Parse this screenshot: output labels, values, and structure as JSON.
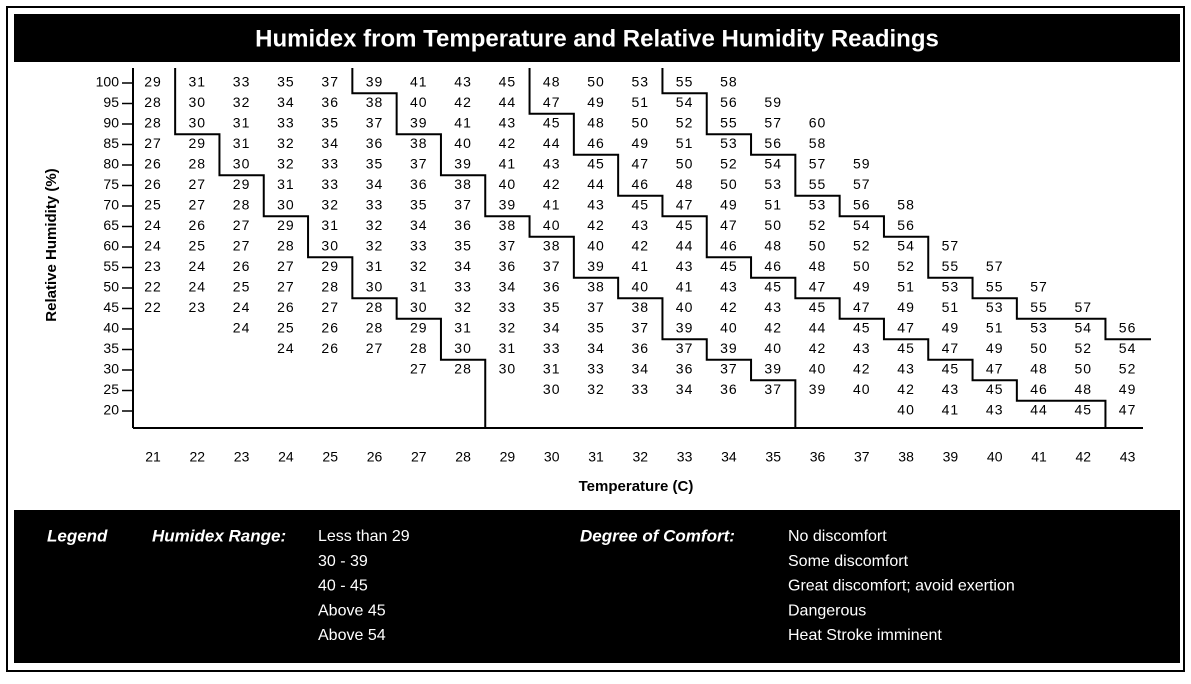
{
  "title": "Humidex from Temperature and Relative Humidity Readings",
  "y_axis_label": "Relative Humidity (%)",
  "x_axis_label": "Temperature (C)",
  "temperatures": [
    21,
    22,
    23,
    24,
    25,
    26,
    27,
    28,
    29,
    30,
    31,
    32,
    33,
    34,
    35,
    36,
    37,
    38,
    39,
    40,
    41,
    42,
    43
  ],
  "humidities": [
    100,
    95,
    90,
    85,
    80,
    75,
    70,
    65,
    60,
    55,
    50,
    45,
    40,
    35,
    30,
    25,
    20
  ],
  "rows": [
    [
      29,
      31,
      33,
      35,
      37,
      39,
      41,
      43,
      45,
      48,
      50,
      53,
      55,
      58,
      null,
      null,
      null,
      null,
      null,
      null,
      null,
      null,
      null
    ],
    [
      28,
      30,
      32,
      34,
      36,
      38,
      40,
      42,
      44,
      47,
      49,
      51,
      54,
      56,
      59,
      null,
      null,
      null,
      null,
      null,
      null,
      null,
      null
    ],
    [
      28,
      30,
      31,
      33,
      35,
      37,
      39,
      41,
      43,
      45,
      48,
      50,
      52,
      55,
      57,
      60,
      null,
      null,
      null,
      null,
      null,
      null,
      null
    ],
    [
      27,
      29,
      31,
      32,
      34,
      36,
      38,
      40,
      42,
      44,
      46,
      49,
      51,
      53,
      56,
      58,
      null,
      null,
      null,
      null,
      null,
      null,
      null
    ],
    [
      26,
      28,
      30,
      32,
      33,
      35,
      37,
      39,
      41,
      43,
      45,
      47,
      50,
      52,
      54,
      57,
      59,
      null,
      null,
      null,
      null,
      null,
      null
    ],
    [
      26,
      27,
      29,
      31,
      33,
      34,
      36,
      38,
      40,
      42,
      44,
      46,
      48,
      50,
      53,
      55,
      57,
      null,
      null,
      null,
      null,
      null,
      null
    ],
    [
      25,
      27,
      28,
      30,
      32,
      33,
      35,
      37,
      39,
      41,
      43,
      45,
      47,
      49,
      51,
      53,
      56,
      58,
      null,
      null,
      null,
      null,
      null
    ],
    [
      24,
      26,
      27,
      29,
      31,
      32,
      34,
      36,
      38,
      40,
      42,
      43,
      45,
      47,
      50,
      52,
      54,
      56,
      null,
      null,
      null,
      null,
      null
    ],
    [
      24,
      25,
      27,
      28,
      30,
      32,
      33,
      35,
      37,
      38,
      40,
      42,
      44,
      46,
      48,
      50,
      52,
      54,
      57,
      null,
      null,
      null,
      null
    ],
    [
      23,
      24,
      26,
      27,
      29,
      31,
      32,
      34,
      36,
      37,
      39,
      41,
      43,
      45,
      46,
      48,
      50,
      52,
      55,
      57,
      null,
      null,
      null
    ],
    [
      22,
      24,
      25,
      27,
      28,
      30,
      31,
      33,
      34,
      36,
      38,
      40,
      41,
      43,
      45,
      47,
      49,
      51,
      53,
      55,
      57,
      null,
      null
    ],
    [
      22,
      23,
      24,
      26,
      27,
      28,
      30,
      32,
      33,
      35,
      37,
      38,
      40,
      42,
      43,
      45,
      47,
      49,
      51,
      53,
      55,
      57,
      null
    ],
    [
      null,
      null,
      24,
      25,
      26,
      28,
      29,
      31,
      32,
      34,
      35,
      37,
      39,
      40,
      42,
      44,
      45,
      47,
      49,
      51,
      53,
      54,
      56
    ],
    [
      null,
      null,
      null,
      24,
      26,
      27,
      28,
      30,
      31,
      33,
      34,
      36,
      37,
      39,
      40,
      42,
      43,
      45,
      47,
      49,
      50,
      52,
      54
    ],
    [
      null,
      null,
      null,
      null,
      null,
      null,
      27,
      28,
      30,
      31,
      33,
      34,
      36,
      37,
      39,
      40,
      42,
      43,
      45,
      47,
      48,
      50,
      52
    ],
    [
      null,
      null,
      null,
      null,
      null,
      null,
      null,
      null,
      null,
      30,
      32,
      33,
      34,
      36,
      37,
      39,
      40,
      42,
      43,
      45,
      46,
      48,
      49
    ],
    [
      null,
      null,
      null,
      null,
      null,
      null,
      null,
      null,
      null,
      null,
      null,
      null,
      null,
      null,
      null,
      null,
      null,
      40,
      41,
      43,
      44,
      45,
      47
    ]
  ],
  "legend": {
    "label": "Legend",
    "range_label": "Humidex Range:",
    "ranges": [
      "Less than 29",
      "30 - 39",
      "40 - 45",
      "Above 45",
      "Above 54"
    ],
    "comfort_label": "Degree of Comfort:",
    "comforts": [
      "No discomfort",
      "Some discomfort",
      "Great discomfort; avoid exertion",
      "Dangerous",
      "Heat Stroke imminent"
    ]
  }
}
